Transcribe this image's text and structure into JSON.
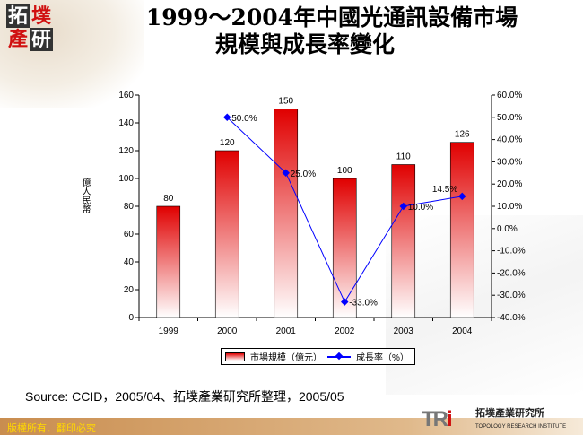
{
  "logo": {
    "chars": [
      "拓",
      "墣",
      "產",
      "研"
    ]
  },
  "title_line1": "1999～2004年中國光通訊設備市場",
  "title_line2": "規模與成長率變化",
  "chart_data": {
    "type": "bar+line",
    "categories": [
      "1999",
      "2000",
      "2001",
      "2002",
      "2003",
      "2004"
    ],
    "series": [
      {
        "name": "市場規模（億元）",
        "type": "bar",
        "axis": "left",
        "values": [
          80,
          120,
          150,
          100,
          110,
          126
        ],
        "labels": [
          "80",
          "120",
          "150",
          "100",
          "110",
          "126"
        ],
        "color": "#e00000"
      },
      {
        "name": "成長率（%）",
        "type": "line",
        "axis": "right",
        "values": [
          null,
          50.0,
          25.0,
          -33.0,
          10.0,
          14.5
        ],
        "labels": [
          "",
          "50.0%",
          "25.0%",
          "-33.0%",
          "10.0%",
          "14.5%"
        ],
        "color": "#0000ff"
      }
    ],
    "ylabel": "億人民幣",
    "ylim": [
      0,
      160
    ],
    "yticks": [
      "0",
      "20",
      "40",
      "60",
      "80",
      "100",
      "120",
      "140",
      "160"
    ],
    "y2lim": [
      -40,
      60
    ],
    "y2ticks": [
      "-40.0%",
      "-30.0%",
      "-20.0%",
      "-10.0%",
      "0.0%",
      "10.0%",
      "20.0%",
      "30.0%",
      "40.0%",
      "50.0%",
      "60.0%"
    ],
    "legend": "bottom"
  },
  "source": "Source: CCID，2005/04、拓墣產業研究所整理，2005/05",
  "footer": "版權所有．翻印必究",
  "brand": {
    "mark": "TR",
    "mark_i": "i",
    "name": "拓墣產業研究所",
    "english": "TOPOLOGY RESEARCH INSTITUTE"
  }
}
